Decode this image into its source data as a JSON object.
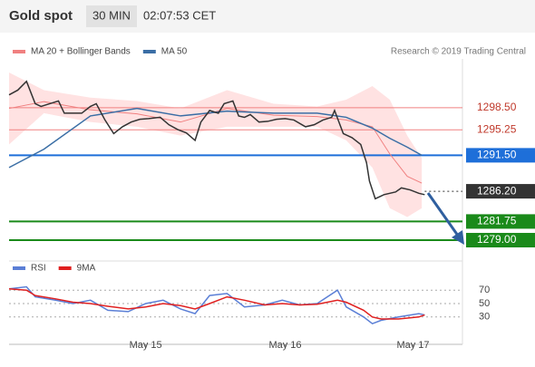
{
  "chart_data": [
    {
      "type": "line",
      "title": "Gold spot",
      "timeframe": "30 MIN",
      "time": "02:07:53 CET",
      "source": "Research © 2019 Trading Central",
      "color": "#333333",
      "x": [
        0,
        3,
        6,
        9,
        11,
        14,
        17,
        19,
        22,
        25,
        28,
        30,
        33,
        36,
        39,
        42,
        45,
        48,
        52,
        55,
        58,
        61,
        64,
        66,
        69,
        72,
        74,
        77,
        79,
        81,
        83,
        86,
        89,
        92,
        95,
        98,
        102,
        105,
        108,
        111,
        112,
        115,
        118,
        121,
        123,
        124,
        126,
        129,
        133,
        135,
        138,
        141,
        143
      ],
      "values": [
        1300.4,
        1301.1,
        1302.4,
        1299.1,
        1298.7,
        1299.1,
        1299.5,
        1297.7,
        1297.7,
        1297.7,
        1298.7,
        1299.1,
        1296.7,
        1294.7,
        1295.7,
        1296.4,
        1296.8,
        1296.9,
        1297.1,
        1296.0,
        1295.3,
        1294.8,
        1293.7,
        1296.4,
        1298.1,
        1297.7,
        1299.1,
        1299.5,
        1297.3,
        1297.1,
        1297.5,
        1296.4,
        1296.5,
        1296.8,
        1296.9,
        1296.7,
        1295.7,
        1296.0,
        1296.7,
        1297.1,
        1298.1,
        1294.7,
        1294.1,
        1293.1,
        1290.4,
        1287.7,
        1285.1,
        1285.7,
        1286.1,
        1286.7,
        1286.4,
        1285.9,
        1285.7
      ],
      "series": [
        {
          "name": "MA 20 + Bollinger Bands",
          "color": "#f08080",
          "band_color": "#ffd6d6",
          "x": [
            0,
            12,
            28,
            44,
            59,
            75,
            91,
            106,
            116,
            125,
            131,
            137,
            142
          ],
          "values": [
            1298.4,
            1299.4,
            1298.2,
            1297.6,
            1296.4,
            1298.4,
            1297.4,
            1297.2,
            1296.7,
            1295.7,
            1291.7,
            1288.4,
            1287.4
          ],
          "upper": [
            1303.7,
            1301.1,
            1300.0,
            1299.5,
            1298.4,
            1301.1,
            1299.1,
            1298.7,
            1299.7,
            1301.7,
            1299.7,
            1294.4,
            1291.1
          ],
          "lower": [
            1293.1,
            1297.7,
            1296.4,
            1295.7,
            1294.4,
            1295.7,
            1295.7,
            1295.7,
            1293.7,
            1289.7,
            1283.7,
            1282.4,
            1283.7
          ]
        },
        {
          "name": "MA 50",
          "color": "#3a6ea5",
          "x": [
            0,
            12,
            28,
            44,
            59,
            75,
            91,
            106,
            116,
            125,
            131,
            137,
            142
          ],
          "values": [
            1289.7,
            1292.4,
            1297.3,
            1298.4,
            1297.3,
            1298.0,
            1297.7,
            1297.7,
            1297.1,
            1295.5,
            1294.0,
            1292.7,
            1291.5
          ]
        }
      ],
      "levels": [
        {
          "value": 1298.5,
          "label": "1298.50",
          "color": "#f08080",
          "boxed": false,
          "dashed": false
        },
        {
          "value": 1295.25,
          "label": "1295.25",
          "color": "#f08080",
          "boxed": false,
          "dashed": false
        },
        {
          "value": 1291.5,
          "label": "1291.50",
          "color": "#1e6fd9",
          "boxed": true,
          "dashed": false
        },
        {
          "value": 1286.2,
          "label": "1286.20",
          "color": "#333333",
          "boxed": true,
          "dashed": true
        },
        {
          "value": 1281.75,
          "label": "1281.75",
          "color": "#1a8a1a",
          "boxed": true,
          "dashed": false
        },
        {
          "value": 1279,
          "label": "1279.00",
          "color": "#1a8a1a",
          "boxed": true,
          "dashed": false
        }
      ],
      "xlim": [
        0,
        156
      ],
      "ylim": [
        1277,
        1305.7
      ],
      "xticks": [
        {
          "value": 47,
          "label": "May 15"
        },
        {
          "value": 95,
          "label": "May 16"
        },
        {
          "value": 139,
          "label": "May 17"
        }
      ]
    },
    {
      "type": "line",
      "xlim": [
        0,
        156
      ],
      "ylim": [
        0,
        100
      ],
      "yticks": [
        30,
        50,
        70
      ],
      "series": [
        {
          "name": "RSI",
          "color": "#5b7fd6",
          "x": [
            0,
            6,
            9,
            16,
            22,
            28,
            34,
            41,
            47,
            53,
            59,
            64,
            69,
            75,
            81,
            88,
            94,
            100,
            106,
            113,
            116,
            122,
            125,
            128,
            134,
            141,
            143
          ],
          "values": [
            72,
            75,
            60,
            55,
            50,
            55,
            40,
            38,
            50,
            55,
            42,
            35,
            62,
            65,
            45,
            48,
            55,
            48,
            50,
            70,
            45,
            30,
            20,
            25,
            30,
            35,
            33
          ]
        },
        {
          "name": "9MA",
          "color": "#e02020",
          "x": [
            0,
            6,
            9,
            16,
            22,
            28,
            34,
            41,
            47,
            53,
            59,
            64,
            69,
            75,
            81,
            88,
            94,
            100,
            106,
            113,
            116,
            122,
            125,
            128,
            134,
            141,
            143
          ],
          "values": [
            72,
            70,
            62,
            57,
            52,
            50,
            46,
            42,
            45,
            50,
            47,
            42,
            50,
            60,
            55,
            48,
            50,
            48,
            49,
            55,
            52,
            40,
            30,
            27,
            27,
            30,
            33
          ]
        }
      ]
    }
  ]
}
